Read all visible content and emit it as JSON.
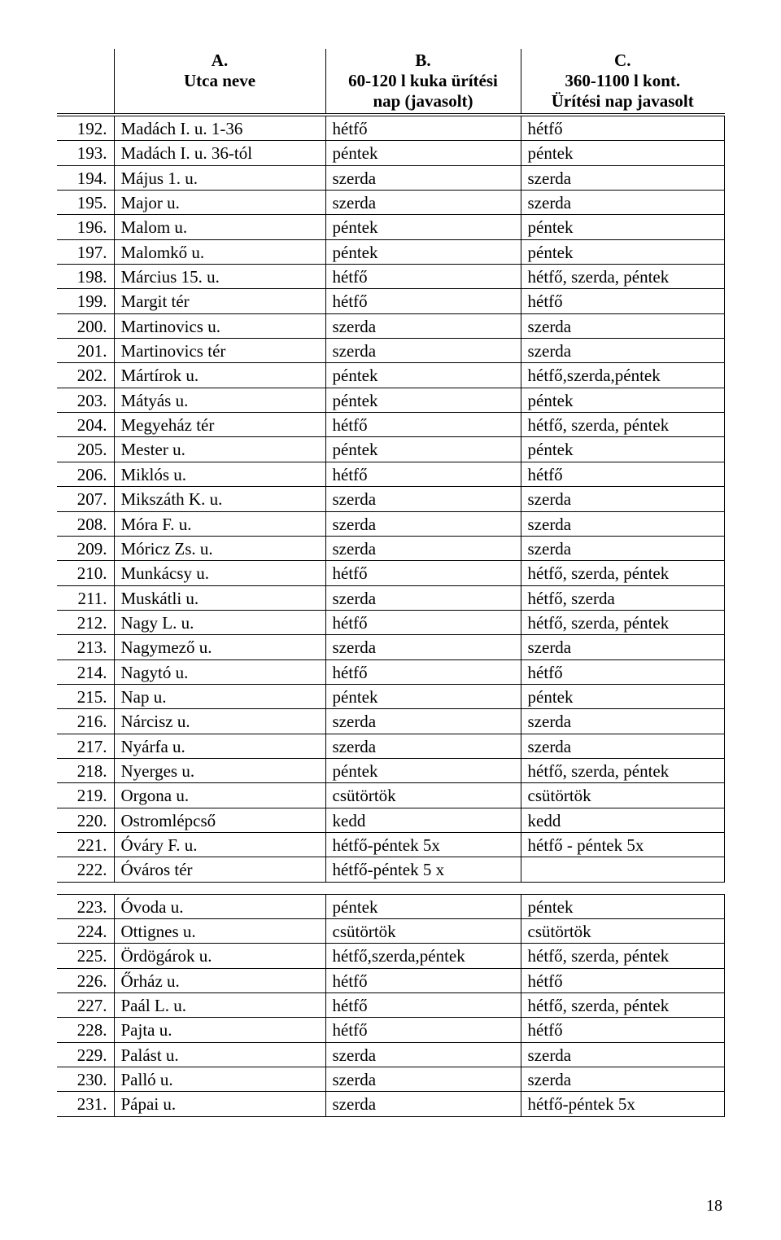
{
  "header": {
    "col0": {
      "letter": "",
      "lines": []
    },
    "col1": {
      "letter": "A.",
      "lines": [
        "Utca neve"
      ]
    },
    "col2": {
      "letter": "B.",
      "lines": [
        "60-120 l kuka ürítési",
        "nap (javasolt)"
      ]
    },
    "col3": {
      "letter": "C.",
      "lines": [
        "360-1100 l kont.",
        "Ürítési nap javasolt"
      ]
    }
  },
  "rows": [
    {
      "n": "192.",
      "a": "Madách I. u. 1-36",
      "b": "hétfő",
      "c": "hétfő"
    },
    {
      "n": "193.",
      "a": "Madách I. u. 36-tól",
      "b": "péntek",
      "c": "péntek"
    },
    {
      "n": "194.",
      "a": "Május 1. u.",
      "b": "szerda",
      "c": "szerda"
    },
    {
      "n": "195.",
      "a": "Major u.",
      "b": "szerda",
      "c": "szerda"
    },
    {
      "n": "196.",
      "a": "Malom u.",
      "b": "péntek",
      "c": "péntek"
    },
    {
      "n": "197.",
      "a": "Malomkő u.",
      "b": "péntek",
      "c": "péntek"
    },
    {
      "n": "198.",
      "a": "Március 15. u.",
      "b": "hétfő",
      "c": "hétfő, szerda, péntek"
    },
    {
      "n": "199.",
      "a": "Margit tér",
      "b": "hétfő",
      "c": "hétfő"
    },
    {
      "n": "200.",
      "a": "Martinovics u.",
      "b": "szerda",
      "c": "szerda"
    },
    {
      "n": "201.",
      "a": "Martinovics tér",
      "b": "szerda",
      "c": "szerda"
    },
    {
      "n": "202.",
      "a": "Mártírok u.",
      "b": "péntek",
      "c": "hétfő,szerda,péntek"
    },
    {
      "n": "203.",
      "a": "Mátyás u.",
      "b": "péntek",
      "c": "péntek"
    },
    {
      "n": "204.",
      "a": "Megyeház tér",
      "b": "hétfő",
      "c": "hétfő, szerda, péntek"
    },
    {
      "n": "205.",
      "a": "Mester u.",
      "b": "péntek",
      "c": "péntek"
    },
    {
      "n": "206.",
      "a": "Miklós u.",
      "b": "hétfő",
      "c": "hétfő"
    },
    {
      "n": "207.",
      "a": "Mikszáth K. u.",
      "b": "szerda",
      "c": "szerda"
    },
    {
      "n": "208.",
      "a": "Móra F. u.",
      "b": "szerda",
      "c": "szerda"
    },
    {
      "n": "209.",
      "a": "Móricz Zs. u.",
      "b": "szerda",
      "c": "szerda"
    },
    {
      "n": "210.",
      "a": "Munkácsy u.",
      "b": "hétfő",
      "c": "hétfő, szerda, péntek"
    },
    {
      "n": "211.",
      "a": "Muskátli u.",
      "b": "szerda",
      "c": "hétfő, szerda"
    },
    {
      "n": "212.",
      "a": "Nagy L. u.",
      "b": "hétfő",
      "c": "hétfő, szerda, péntek"
    },
    {
      "n": "213.",
      "a": "Nagymező u.",
      "b": "szerda",
      "c": "szerda"
    },
    {
      "n": "214.",
      "a": "Nagytó u.",
      "b": "hétfő",
      "c": "hétfő"
    },
    {
      "n": "215.",
      "a": "Nap u.",
      "b": "péntek",
      "c": "péntek"
    },
    {
      "n": "216.",
      "a": "Nárcisz u.",
      "b": "szerda",
      "c": "szerda"
    },
    {
      "n": "217.",
      "a": "Nyárfa u.",
      "b": "szerda",
      "c": "szerda"
    },
    {
      "n": "218.",
      "a": "Nyerges u.",
      "b": "péntek",
      "c": "hétfő, szerda, péntek"
    },
    {
      "n": "219.",
      "a": "Orgona u.",
      "b": "csütörtök",
      "c": "csütörtök"
    },
    {
      "n": "220.",
      "a": "Ostromlépcső",
      "b": "kedd",
      "c": "kedd"
    },
    {
      "n": "221.",
      "a": "Óváry F. u.",
      "b": "hétfő-péntek 5x",
      "c": "hétfő - péntek  5x"
    },
    {
      "n": "222.",
      "a": "Óváros tér",
      "b": "hétfő-péntek 5 x",
      "c": ""
    },
    {
      "gap": true
    },
    {
      "n": "223.",
      "a": "Óvoda u.",
      "b": "péntek",
      "c": "péntek"
    },
    {
      "n": "224.",
      "a": "Ottignes u.",
      "b": "csütörtök",
      "c": "csütörtök"
    },
    {
      "n": "225.",
      "a": "Ördögárok u.",
      "b": "hétfő,szerda,péntek",
      "c": "hétfő, szerda, péntek"
    },
    {
      "n": "226.",
      "a": "Őrház u.",
      "b": "hétfő",
      "c": "hétfő"
    },
    {
      "n": "227.",
      "a": "Paál L. u.",
      "b": "hétfő",
      "c": "hétfő, szerda, péntek"
    },
    {
      "n": "228.",
      "a": "Pajta u.",
      "b": "hétfő",
      "c": "hétfő"
    },
    {
      "n": "229.",
      "a": "Palást u.",
      "b": "szerda",
      "c": "szerda"
    },
    {
      "n": "230.",
      "a": "Palló u.",
      "b": "szerda",
      "c": "szerda"
    },
    {
      "n": "231.",
      "a": "Pápai u.",
      "b": "szerda",
      "c": "hétfő-péntek 5x"
    }
  ],
  "pageNumber": "18"
}
